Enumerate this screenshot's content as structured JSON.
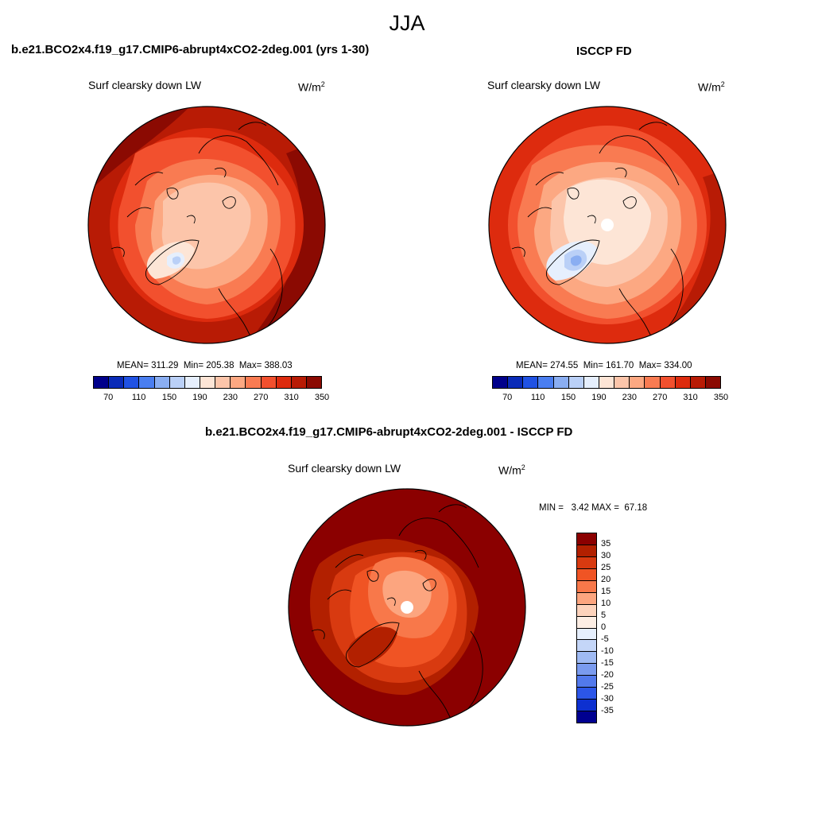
{
  "season": "JJA",
  "panel_a": {
    "title": "b.e21.BCO2x4.f19_g17.CMIP6-abrupt4xCO2-2deg.001 (yrs 1-30)",
    "variable": "Surf clearsky down LW",
    "units_base": "W/m",
    "units_exp": "2",
    "stats": "MEAN= 311.29  Min= 205.38  Max= 388.03",
    "colorbar_ticks": [
      "70",
      "110",
      "150",
      "190",
      "230",
      "270",
      "310",
      "350"
    ]
  },
  "panel_b": {
    "title": "ISCCP FD",
    "variable": "Surf clearsky down LW",
    "units_base": "W/m",
    "units_exp": "2",
    "stats": "MEAN= 274.55  Min= 161.70  Max= 334.00",
    "colorbar_ticks": [
      "70",
      "110",
      "150",
      "190",
      "230",
      "270",
      "310",
      "350"
    ]
  },
  "panel_diff": {
    "title": "b.e21.BCO2x4.f19_g17.CMIP6-abrupt4xCO2-2deg.001 - ISCCP FD",
    "variable": "Surf clearsky down LW",
    "units_base": "W/m",
    "units_exp": "2",
    "stats": "MIN =   3.42 MAX =  67.18",
    "colorbar_ticks": [
      "35",
      "30",
      "25",
      "20",
      "15",
      "10",
      "5",
      "0",
      "-5",
      "-10",
      "-15",
      "-20",
      "-25",
      "-30",
      "-35"
    ]
  },
  "colors": {
    "abs_scale": [
      "#00008b",
      "#0a2bb8",
      "#2052e4",
      "#4a7ef0",
      "#8aaef2",
      "#bad0f7",
      "#e6effd",
      "#fde5d6",
      "#fcc5aa",
      "#fca882",
      "#f97b52",
      "#f2502e",
      "#dd2b0e",
      "#b81b05",
      "#8b0a02"
    ],
    "diff_scale": [
      "#8b0000",
      "#b22000",
      "#d83a10",
      "#f05424",
      "#f8784a",
      "#fca57f",
      "#fdd3bc",
      "#fdeee4",
      "#e6effd",
      "#c4d6f8",
      "#9fbaf3",
      "#7a9bef",
      "#5279ec",
      "#2c56e8",
      "#0d30d0",
      "#000090"
    ]
  }
}
